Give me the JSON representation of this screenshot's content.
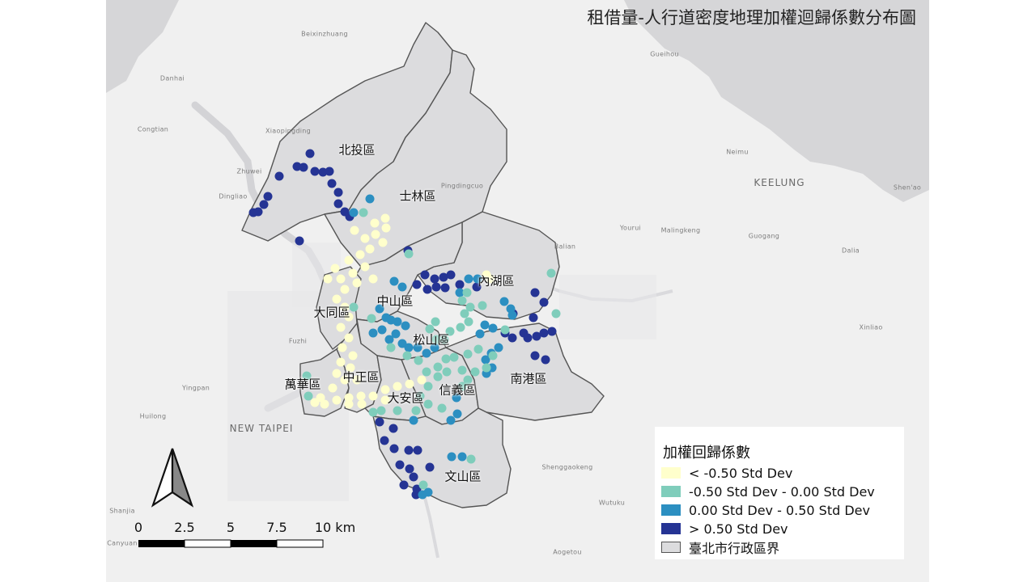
{
  "title": "租借量-人行道密度地理加權迴歸係數分布圖",
  "colors": {
    "low": "#ffffcc",
    "mid_low": "#7fcdbb",
    "mid_high": "#2c8fc1",
    "high": "#253494",
    "district_fill": "#dcdcde",
    "district_stroke": "#555555"
  },
  "districts": [
    {
      "id": "beitou",
      "label": "北投區"
    },
    {
      "id": "shilin",
      "label": "士林區"
    },
    {
      "id": "neihu",
      "label": "內湖區"
    },
    {
      "id": "zhongshan",
      "label": "中山區"
    },
    {
      "id": "datong",
      "label": "大同區"
    },
    {
      "id": "songshan",
      "label": "松山區"
    },
    {
      "id": "wanhua",
      "label": "萬華區"
    },
    {
      "id": "zhongzheng",
      "label": "中正區"
    },
    {
      "id": "xinyi",
      "label": "信義區"
    },
    {
      "id": "daan",
      "label": "大安區"
    },
    {
      "id": "nangang",
      "label": "南港區"
    },
    {
      "id": "wenshan",
      "label": "文山區"
    }
  ],
  "basemap_labels": [
    {
      "id": "beixinzhuang",
      "text": "Beixinzhuang"
    },
    {
      "id": "danhai",
      "text": "Danhai"
    },
    {
      "id": "congtian",
      "text": "Congtian"
    },
    {
      "id": "xiaopingding",
      "text": "Xiaopingding"
    },
    {
      "id": "zhuwei",
      "text": "Zhuwei"
    },
    {
      "id": "dingliao",
      "text": "Dingliao"
    },
    {
      "id": "pingdingcuo",
      "text": "Pingdingcuo"
    },
    {
      "id": "gueihou",
      "text": "Gueihou"
    },
    {
      "id": "neimu",
      "text": "Neimu"
    },
    {
      "id": "keelung",
      "text": "KEELUNG"
    },
    {
      "id": "shenao",
      "text": "Shen'ao"
    },
    {
      "id": "balian",
      "text": "Balian"
    },
    {
      "id": "yourui",
      "text": "Yourui"
    },
    {
      "id": "malingkeng",
      "text": "Malingkeng"
    },
    {
      "id": "guogang",
      "text": "Guogang"
    },
    {
      "id": "dalia",
      "text": "Dalia"
    },
    {
      "id": "fuzhi",
      "text": "Fuzhi"
    },
    {
      "id": "yingpan",
      "text": "Yingpan"
    },
    {
      "id": "huilong",
      "text": "Huilong"
    },
    {
      "id": "new_taipei",
      "text": "NEW TAIPEI"
    },
    {
      "id": "shenggaokeng",
      "text": "Shenggaokeng"
    },
    {
      "id": "wutuku",
      "text": "Wutuku"
    },
    {
      "id": "shanjia",
      "text": "Shanjia"
    },
    {
      "id": "canyuan",
      "text": "Canyuan"
    },
    {
      "id": "xinliao",
      "text": "Xinliao"
    },
    {
      "id": "aogetou",
      "text": "Aogetou"
    }
  ],
  "legend": {
    "title": "加權回歸係數",
    "items": [
      {
        "label": "<  -0.50 Std Dev",
        "color_key": "low"
      },
      {
        "label": "-0.50 Std Dev -  0.00 Std Dev",
        "color_key": "mid_low"
      },
      {
        "label": "0.00 Std Dev -  0.50 Std Dev",
        "color_key": "mid_high"
      },
      {
        "label": ">  0.50 Std Dev",
        "color_key": "high"
      },
      {
        "label": "臺北市行政區界",
        "color_key": "district_fill"
      }
    ]
  },
  "scale_bar": {
    "ticks": [
      "0",
      "2.5",
      "5",
      "7.5",
      "10 km"
    ]
  },
  "north_arrow": {
    "icon": "north-arrow-icon"
  }
}
